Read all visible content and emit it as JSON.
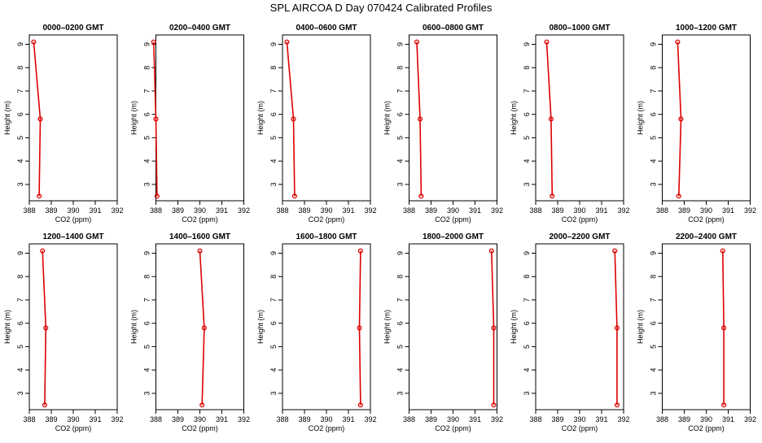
{
  "title": "SPL AIRCOA D  Day 070424  Calibrated Profiles",
  "colors": {
    "series": "#dd0000",
    "axis": "#000000",
    "background": "#ffffff"
  },
  "chart_data": [
    {
      "type": "line",
      "title": "0000–0200 GMT",
      "xlabel": "CO2 (ppm)",
      "ylabel": "Height (m)",
      "xlim": [
        388,
        392
      ],
      "ylim": [
        2.3,
        9.4
      ],
      "xticks": [
        388,
        389,
        390,
        391,
        392
      ],
      "yticks": [
        3,
        4,
        5,
        6,
        7,
        8,
        9
      ],
      "series": [
        {
          "x": [
            388.45,
            388.5,
            388.2
          ],
          "y": [
            2.5,
            5.8,
            9.1
          ],
          "markers": true
        }
      ]
    },
    {
      "type": "line",
      "title": "0200–0400 GMT",
      "xlabel": "CO2 (ppm)",
      "ylabel": "Height (m)",
      "xlim": [
        388,
        392
      ],
      "ylim": [
        2.3,
        9.4
      ],
      "xticks": [
        388,
        389,
        390,
        391,
        392
      ],
      "yticks": [
        3,
        4,
        5,
        6,
        7,
        8,
        9
      ],
      "series": [
        {
          "x": [
            388.05,
            388.0,
            387.9
          ],
          "y": [
            2.5,
            5.8,
            9.1
          ],
          "markers": true
        }
      ]
    },
    {
      "type": "line",
      "title": "0400–0600 GMT",
      "xlabel": "CO2 (ppm)",
      "ylabel": "Height (m)",
      "xlim": [
        388,
        392
      ],
      "ylim": [
        2.3,
        9.4
      ],
      "xticks": [
        388,
        389,
        390,
        391,
        392
      ],
      "yticks": [
        3,
        4,
        5,
        6,
        7,
        8,
        9
      ],
      "series": [
        {
          "x": [
            388.55,
            388.5,
            388.2
          ],
          "y": [
            2.5,
            5.8,
            9.1
          ],
          "markers": true
        }
      ]
    },
    {
      "type": "line",
      "title": "0600–0800 GMT",
      "xlabel": "CO2 (ppm)",
      "ylabel": "Height (m)",
      "xlim": [
        388,
        392
      ],
      "ylim": [
        2.3,
        9.4
      ],
      "xticks": [
        388,
        389,
        390,
        391,
        392
      ],
      "yticks": [
        3,
        4,
        5,
        6,
        7,
        8,
        9
      ],
      "series": [
        {
          "x": [
            388.55,
            388.5,
            388.35
          ],
          "y": [
            2.5,
            5.8,
            9.1
          ],
          "markers": true
        }
      ]
    },
    {
      "type": "line",
      "title": "0800–1000 GMT",
      "xlabel": "CO2 (ppm)",
      "ylabel": "Height (m)",
      "xlim": [
        388,
        392
      ],
      "ylim": [
        2.3,
        9.4
      ],
      "xticks": [
        388,
        389,
        390,
        391,
        392
      ],
      "yticks": [
        3,
        4,
        5,
        6,
        7,
        8,
        9
      ],
      "series": [
        {
          "x": [
            388.75,
            388.7,
            388.5
          ],
          "y": [
            2.5,
            5.8,
            9.1
          ],
          "markers": true
        }
      ]
    },
    {
      "type": "line",
      "title": "1000–1200 GMT",
      "xlabel": "CO2 (ppm)",
      "ylabel": "Height (m)",
      "xlim": [
        388,
        392
      ],
      "ylim": [
        2.3,
        9.4
      ],
      "xticks": [
        388,
        389,
        390,
        391,
        392
      ],
      "yticks": [
        3,
        4,
        5,
        6,
        7,
        8,
        9
      ],
      "series": [
        {
          "x": [
            388.75,
            388.85,
            388.7
          ],
          "y": [
            2.5,
            5.8,
            9.1
          ],
          "markers": true
        }
      ]
    },
    {
      "type": "line",
      "title": "1200–1400 GMT",
      "xlabel": "CO2 (ppm)",
      "ylabel": "Height (m)",
      "xlim": [
        388,
        392
      ],
      "ylim": [
        2.3,
        9.4
      ],
      "xticks": [
        388,
        389,
        390,
        391,
        392
      ],
      "yticks": [
        3,
        4,
        5,
        6,
        7,
        8,
        9
      ],
      "series": [
        {
          "x": [
            388.7,
            388.75,
            388.6
          ],
          "y": [
            2.5,
            5.8,
            9.1
          ],
          "markers": true
        }
      ]
    },
    {
      "type": "line",
      "title": "1400–1600 GMT",
      "xlabel": "CO2 (ppm)",
      "ylabel": "Height (m)",
      "xlim": [
        388,
        392
      ],
      "ylim": [
        2.3,
        9.4
      ],
      "xticks": [
        388,
        389,
        390,
        391,
        392
      ],
      "yticks": [
        3,
        4,
        5,
        6,
        7,
        8,
        9
      ],
      "series": [
        {
          "x": [
            390.1,
            390.2,
            390.0
          ],
          "y": [
            2.5,
            5.8,
            9.1
          ],
          "markers": true
        }
      ]
    },
    {
      "type": "line",
      "title": "1600–1800 GMT",
      "xlabel": "CO2 (ppm)",
      "ylabel": "Height (m)",
      "xlim": [
        388,
        392
      ],
      "ylim": [
        2.3,
        9.4
      ],
      "xticks": [
        388,
        389,
        390,
        391,
        392
      ],
      "yticks": [
        3,
        4,
        5,
        6,
        7,
        8,
        9
      ],
      "series": [
        {
          "x": [
            391.55,
            391.5,
            391.55
          ],
          "y": [
            2.5,
            5.8,
            9.1
          ],
          "markers": true
        }
      ]
    },
    {
      "type": "line",
      "title": "1800–2000 GMT",
      "xlabel": "CO2 (ppm)",
      "ylabel": "Height (m)",
      "xlim": [
        388,
        392
      ],
      "ylim": [
        2.3,
        9.4
      ],
      "xticks": [
        388,
        389,
        390,
        391,
        392
      ],
      "yticks": [
        3,
        4,
        5,
        6,
        7,
        8,
        9
      ],
      "series": [
        {
          "x": [
            391.85,
            391.85,
            391.75
          ],
          "y": [
            2.5,
            5.8,
            9.1
          ],
          "markers": true
        }
      ]
    },
    {
      "type": "line",
      "title": "2000–2200 GMT",
      "xlabel": "CO2 (ppm)",
      "ylabel": "Height (m)",
      "xlim": [
        388,
        392
      ],
      "ylim": [
        2.3,
        9.4
      ],
      "xticks": [
        388,
        389,
        390,
        391,
        392
      ],
      "yticks": [
        3,
        4,
        5,
        6,
        7,
        8,
        9
      ],
      "series": [
        {
          "x": [
            391.7,
            391.7,
            391.6
          ],
          "y": [
            2.5,
            5.8,
            9.1
          ],
          "markers": true
        }
      ]
    },
    {
      "type": "line",
      "title": "2200–2400 GMT",
      "xlabel": "CO2 (ppm)",
      "ylabel": "Height (m)",
      "xlim": [
        388,
        392
      ],
      "ylim": [
        2.3,
        9.4
      ],
      "xticks": [
        388,
        389,
        390,
        391,
        392
      ],
      "yticks": [
        3,
        4,
        5,
        6,
        7,
        8,
        9
      ],
      "series": [
        {
          "x": [
            390.8,
            390.8,
            390.75
          ],
          "y": [
            2.5,
            5.8,
            9.1
          ],
          "markers": true
        }
      ]
    }
  ]
}
